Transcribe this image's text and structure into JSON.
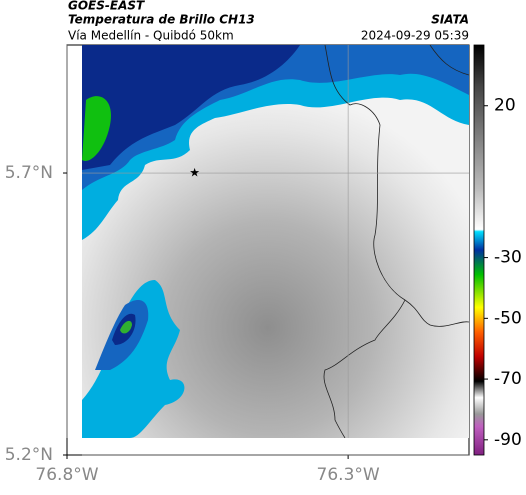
{
  "chart_data": {
    "type": "map",
    "title": "GOES-EAST",
    "subtitle": "Temperatura de Brillo CH13",
    "source": "SIATA",
    "location": "Vía Medellín - Quibdó 50km",
    "timestamp": "2024-09-29 05:39",
    "xlim": [
      -76.8,
      -76.085
    ],
    "ylim": [
      5.2,
      5.927
    ],
    "xticks": [
      {
        "value": -76.8,
        "label": "76.8°W"
      },
      {
        "value": -76.3,
        "label": "76.3°W"
      }
    ],
    "yticks": [
      {
        "value": 5.2,
        "label": "5.2°N"
      },
      {
        "value": 5.7,
        "label": "5.7°N"
      }
    ],
    "grid": true,
    "marker": {
      "lon": -76.573,
      "lat": 5.7
    },
    "colorbar": {
      "lim": [
        -95,
        40
      ],
      "ticks": [
        20,
        -30,
        -50,
        -70,
        -90
      ]
    }
  }
}
